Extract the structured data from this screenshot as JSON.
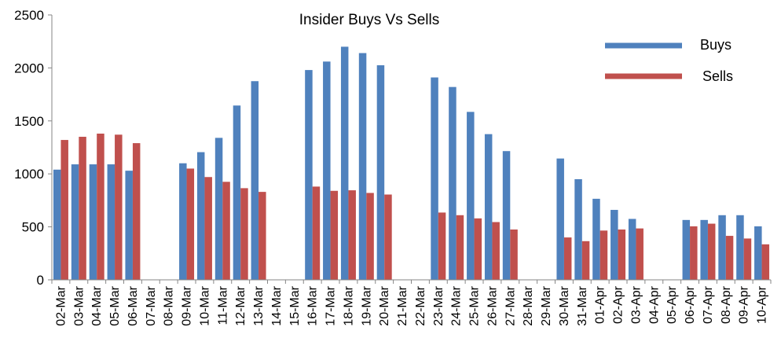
{
  "chart_data": {
    "type": "bar",
    "title": "Insider Buys Vs Sells",
    "xlabel": "",
    "ylabel": "",
    "ylim": [
      0,
      2500
    ],
    "yticks": [
      0,
      500,
      1000,
      1500,
      2000,
      2500
    ],
    "grid": false,
    "legend_position": "top-right",
    "categories": [
      "02-Mar",
      "03-Mar",
      "04-Mar",
      "05-Mar",
      "06-Mar",
      "07-Mar",
      "08-Mar",
      "09-Mar",
      "10-Mar",
      "11-Mar",
      "12-Mar",
      "13-Mar",
      "14-Mar",
      "15-Mar",
      "16-Mar",
      "17-Mar",
      "18-Mar",
      "19-Mar",
      "20-Mar",
      "21-Mar",
      "22-Mar",
      "23-Mar",
      "24-Mar",
      "25-Mar",
      "26-Mar",
      "27-Mar",
      "28-Mar",
      "29-Mar",
      "30-Mar",
      "31-Mar",
      "01-Apr",
      "02-Apr",
      "03-Apr",
      "04-Apr",
      "05-Apr",
      "06-Apr",
      "07-Apr",
      "08-Apr",
      "09-Apr",
      "10-Apr"
    ],
    "series": [
      {
        "name": "Buys",
        "color": "#4f81bd",
        "values": [
          1040,
          1090,
          1090,
          1090,
          1030,
          0,
          0,
          1100,
          1205,
          1340,
          1645,
          1875,
          0,
          0,
          1980,
          2060,
          2200,
          2140,
          2025,
          0,
          0,
          1910,
          1820,
          1585,
          1375,
          1215,
          0,
          0,
          1145,
          950,
          765,
          660,
          575,
          0,
          0,
          565,
          565,
          610,
          610,
          505
        ]
      },
      {
        "name": "Sells",
        "color": "#c0504d",
        "values": [
          1320,
          1350,
          1380,
          1370,
          1290,
          0,
          0,
          1050,
          970,
          925,
          865,
          830,
          0,
          0,
          880,
          840,
          845,
          820,
          805,
          0,
          0,
          635,
          610,
          580,
          545,
          475,
          0,
          0,
          400,
          365,
          465,
          475,
          485,
          0,
          0,
          505,
          530,
          415,
          390,
          335
        ]
      }
    ]
  }
}
